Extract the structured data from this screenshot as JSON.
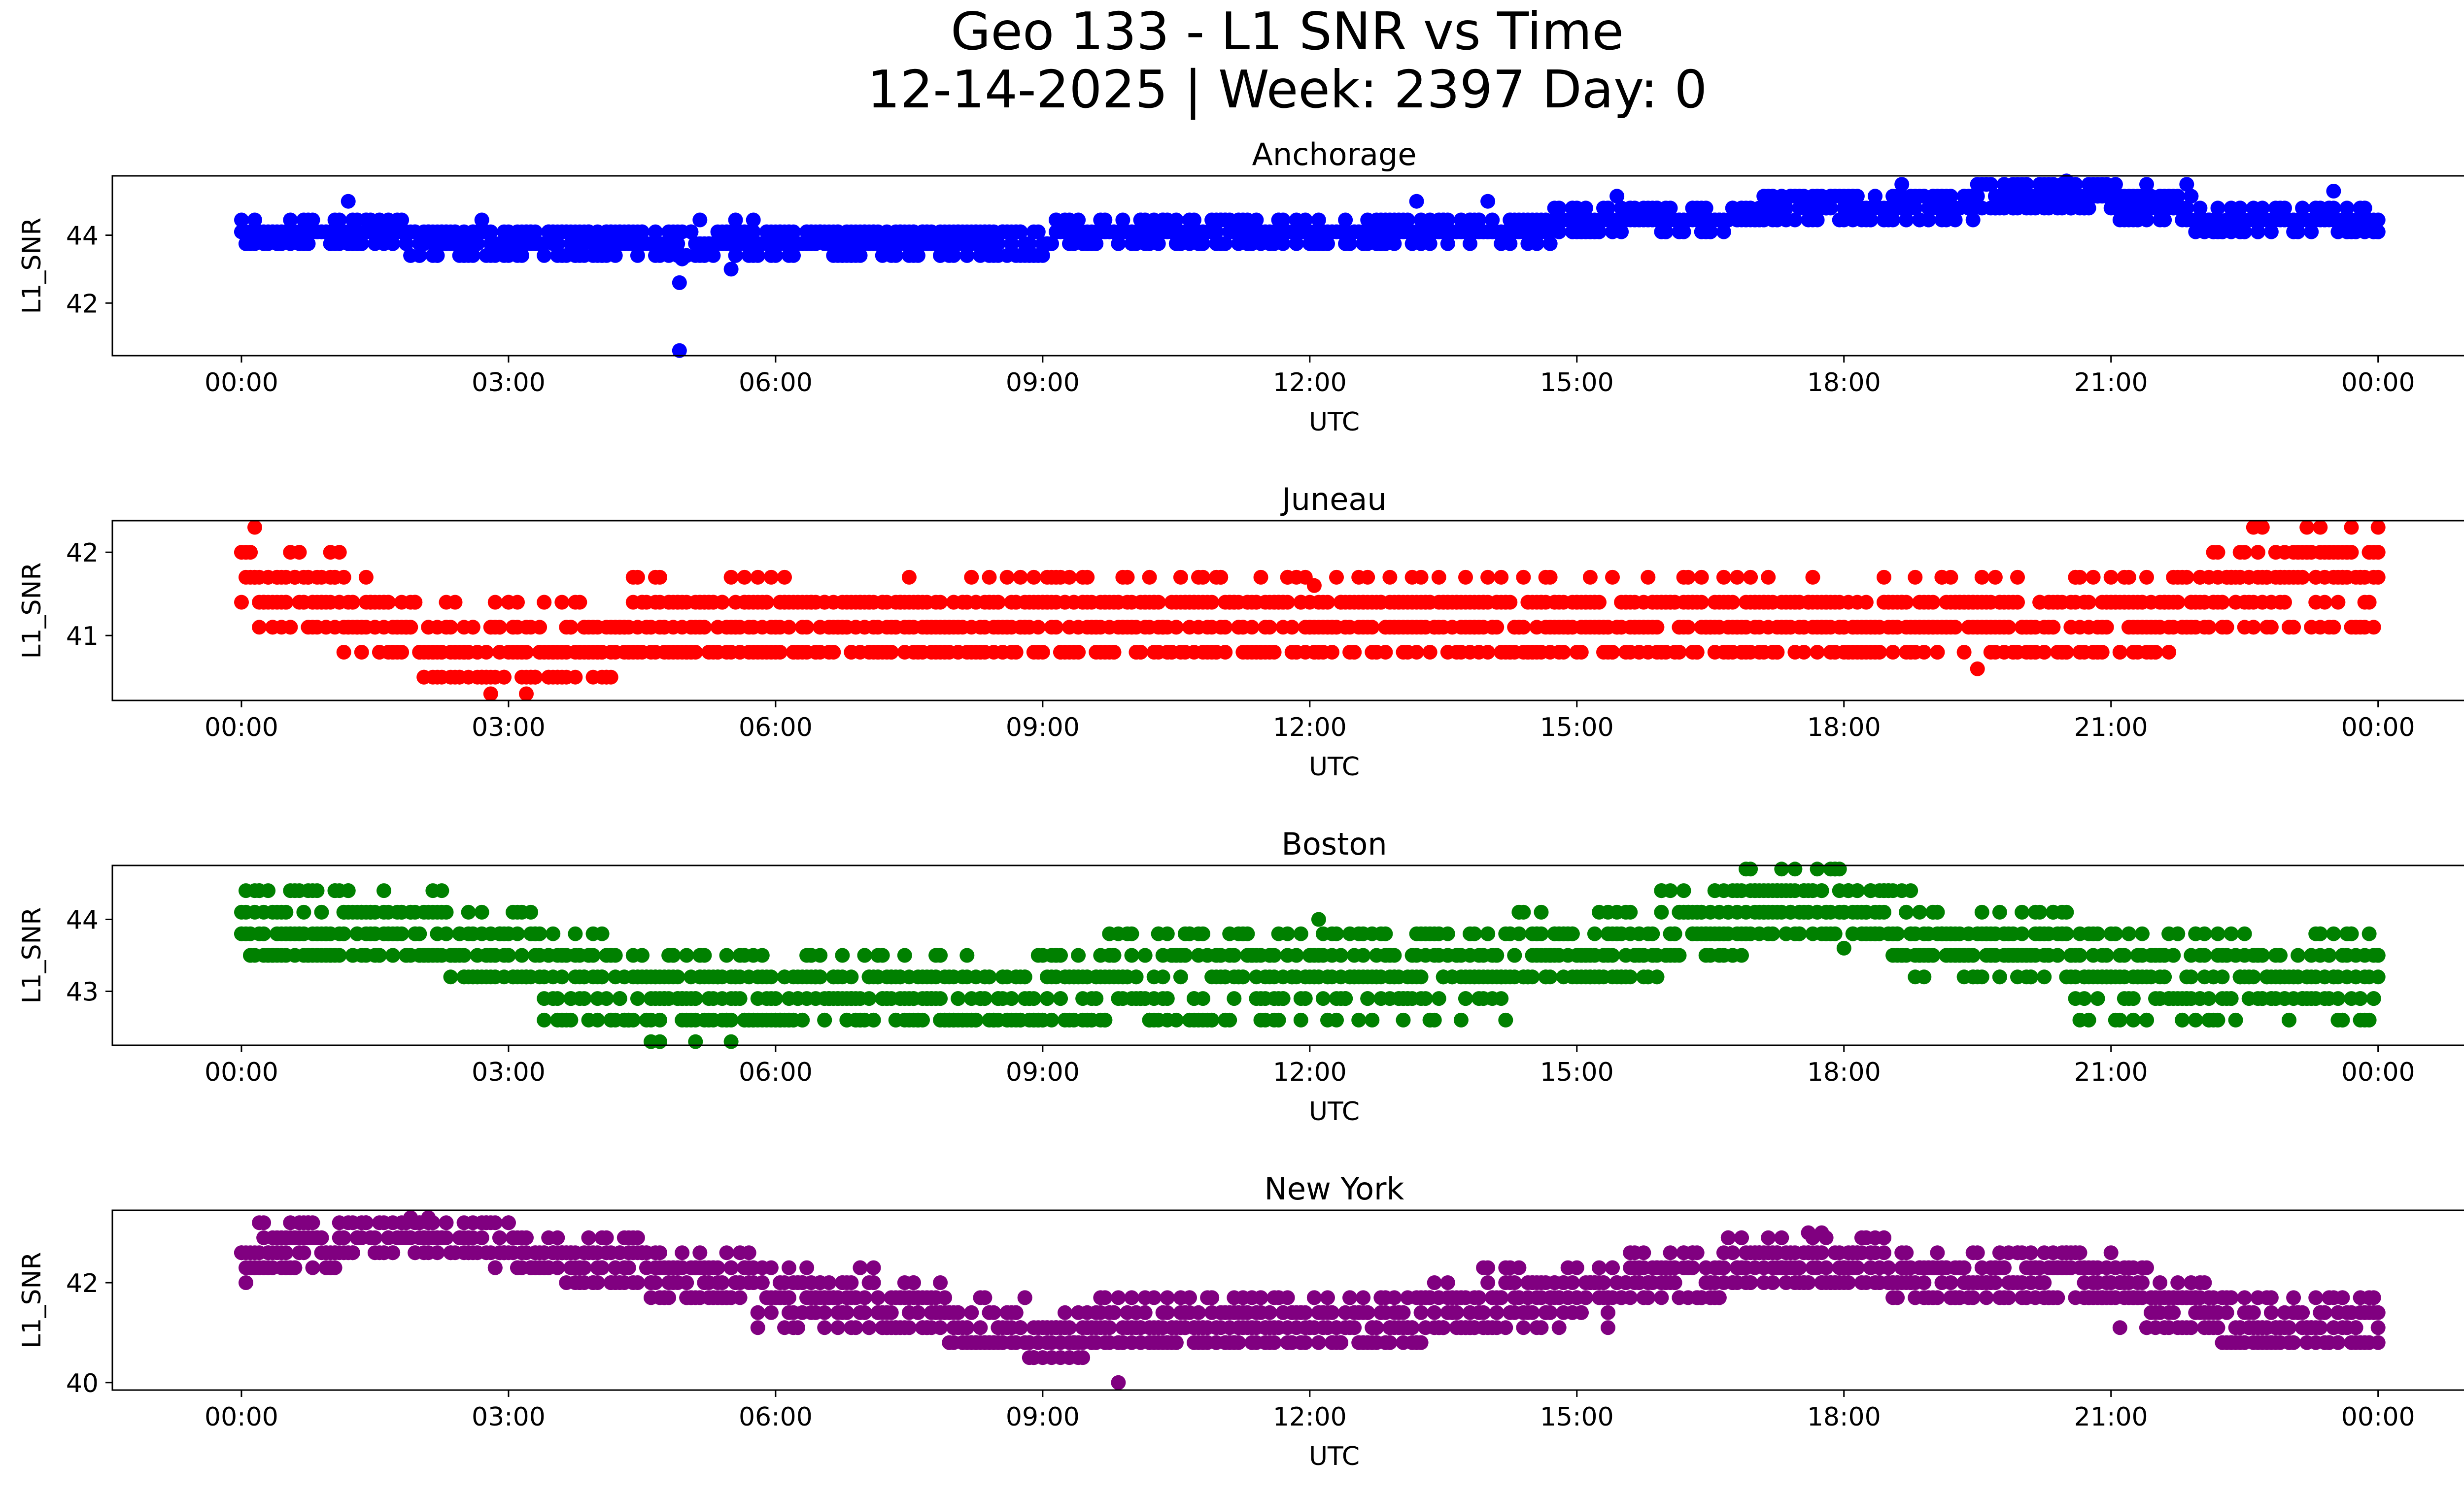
{
  "figure": {
    "title_line1": "Geo 133 - L1 SNR vs Time",
    "title_line2": "12-14-2025 | Week: 2397 Day: 0"
  },
  "chart_data": [
    {
      "type": "scatter",
      "title": "Anchorage",
      "xlabel": "UTC",
      "ylabel": "L1_SNR",
      "color": "#0000ff",
      "xlim": [
        -1.45,
        26.0
      ],
      "ylim": [
        40.45,
        45.75
      ],
      "x_ticks": [
        0,
        3,
        6,
        9,
        12,
        15,
        18,
        21,
        24
      ],
      "x_tick_labels": [
        "00:00",
        "03:00",
        "06:00",
        "09:00",
        "12:00",
        "15:00",
        "18:00",
        "21:00",
        "00:00"
      ],
      "y_ticks": [
        42,
        44
      ],
      "y_tick_labels": [
        "42",
        "44"
      ],
      "profile": [
        [
          0,
          44.1
        ],
        [
          1.5,
          44.0
        ],
        [
          2.5,
          43.8
        ],
        [
          4.0,
          43.8
        ],
        [
          6.0,
          43.9
        ],
        [
          8.0,
          43.9
        ],
        [
          9.0,
          43.9
        ],
        [
          10.0,
          44.1
        ],
        [
          12.0,
          44.2
        ],
        [
          14.0,
          44.2
        ],
        [
          16.0,
          44.4
        ],
        [
          17.0,
          44.6
        ],
        [
          18.0,
          44.9
        ],
        [
          20.0,
          45.0
        ],
        [
          21.0,
          45.0
        ],
        [
          22.0,
          44.6
        ],
        [
          24.0,
          44.6
        ]
      ],
      "spread": 0.9,
      "step": 0.35,
      "outliers": [
        [
          4.92,
          42.6
        ],
        [
          4.92,
          40.6
        ],
        [
          5.5,
          43.0
        ],
        [
          4.95,
          43.3
        ],
        [
          1.2,
          45.0
        ],
        [
          13.2,
          45.0
        ],
        [
          14.0,
          45.0
        ],
        [
          20.5,
          45.6
        ],
        [
          23.5,
          45.3
        ]
      ]
    },
    {
      "type": "scatter",
      "title": "Juneau",
      "xlabel": "UTC",
      "ylabel": "L1_SNR",
      "color": "#ff0000",
      "xlim": [
        -1.45,
        26.0
      ],
      "ylim": [
        40.22,
        42.38
      ],
      "x_ticks": [
        0,
        3,
        6,
        9,
        12,
        15,
        18,
        21,
        24
      ],
      "x_tick_labels": [
        "00:00",
        "03:00",
        "06:00",
        "09:00",
        "12:00",
        "15:00",
        "18:00",
        "21:00",
        "00:00"
      ],
      "y_ticks": [
        41,
        42
      ],
      "y_tick_labels": [
        "41",
        "42"
      ],
      "profile": [
        [
          0,
          41.6
        ],
        [
          1.0,
          41.3
        ],
        [
          1.8,
          41.0
        ],
        [
          2.5,
          40.8
        ],
        [
          3.5,
          40.8
        ],
        [
          4.5,
          41.0
        ],
        [
          6.0,
          41.1
        ],
        [
          9.0,
          41.1
        ],
        [
          12.0,
          41.1
        ],
        [
          15.0,
          41.1
        ],
        [
          18.0,
          41.1
        ],
        [
          21.0,
          41.1
        ],
        [
          22.0,
          41.3
        ],
        [
          23.0,
          41.6
        ],
        [
          24.0,
          41.6
        ]
      ],
      "spread": 0.9,
      "step": 0.3,
      "outliers": [
        [
          22.6,
          42.3
        ],
        [
          22.7,
          42.3
        ],
        [
          2.8,
          40.3
        ],
        [
          3.2,
          40.3
        ],
        [
          19.5,
          40.6
        ],
        [
          12.05,
          41.6
        ]
      ]
    },
    {
      "type": "scatter",
      "title": "Boston",
      "xlabel": "UTC",
      "ylabel": "L1_SNR",
      "color": "#008000",
      "xlim": [
        -1.45,
        26.0
      ],
      "ylim": [
        42.25,
        44.75
      ],
      "x_ticks": [
        0,
        3,
        6,
        9,
        12,
        15,
        18,
        21,
        24
      ],
      "x_tick_labels": [
        "00:00",
        "03:00",
        "06:00",
        "09:00",
        "12:00",
        "15:00",
        "18:00",
        "21:00",
        "00:00"
      ],
      "y_ticks": [
        43,
        44
      ],
      "y_tick_labels": [
        "43",
        "44"
      ],
      "profile": [
        [
          0,
          43.8
        ],
        [
          1.5,
          43.8
        ],
        [
          2.5,
          43.6
        ],
        [
          3.5,
          43.3
        ],
        [
          4.5,
          42.9
        ],
        [
          6.0,
          42.8
        ],
        [
          7.0,
          42.9
        ],
        [
          9.0,
          43.0
        ],
        [
          12.0,
          43.2
        ],
        [
          15.0,
          43.4
        ],
        [
          16.5,
          43.8
        ],
        [
          17.5,
          44.2
        ],
        [
          18.5,
          44.0
        ],
        [
          19.0,
          43.4
        ],
        [
          22.0,
          43.3
        ],
        [
          23.0,
          43.0
        ],
        [
          24.0,
          43.2
        ]
      ],
      "spread": 1.0,
      "step": 0.3,
      "outliers": [
        [
          4.6,
          42.3
        ],
        [
          4.7,
          42.3
        ],
        [
          5.1,
          42.3
        ],
        [
          5.5,
          42.3
        ],
        [
          12.1,
          44.0
        ],
        [
          18.0,
          43.6
        ],
        [
          11.6,
          42.6
        ]
      ]
    },
    {
      "type": "scatter",
      "title": "New York",
      "xlabel": "UTC",
      "ylabel": "L1_SNR",
      "color": "#800080",
      "xlim": [
        -1.45,
        26.0
      ],
      "ylim": [
        39.85,
        43.45
      ],
      "x_ticks": [
        0,
        3,
        6,
        9,
        12,
        15,
        18,
        21,
        24
      ],
      "x_tick_labels": [
        "00:00",
        "03:00",
        "06:00",
        "09:00",
        "12:00",
        "15:00",
        "18:00",
        "21:00",
        "00:00"
      ],
      "y_ticks": [
        40,
        42
      ],
      "y_tick_labels": [
        "40",
        "42"
      ],
      "profile": [
        [
          0,
          42.4
        ],
        [
          1.0,
          42.7
        ],
        [
          2.0,
          43.0
        ],
        [
          3.0,
          42.7
        ],
        [
          4.0,
          42.3
        ],
        [
          5.0,
          42.0
        ],
        [
          6.0,
          41.8
        ],
        [
          7.0,
          41.6
        ],
        [
          8.0,
          41.2
        ],
        [
          9.0,
          40.9
        ],
        [
          10.0,
          41.0
        ],
        [
          11.0,
          41.2
        ],
        [
          12.0,
          41.1
        ],
        [
          13.0,
          41.1
        ],
        [
          14.0,
          41.6
        ],
        [
          15.0,
          41.8
        ],
        [
          16.0,
          41.9
        ],
        [
          17.0,
          42.3
        ],
        [
          18.0,
          42.3
        ],
        [
          19.0,
          42.0
        ],
        [
          21.0,
          41.9
        ],
        [
          22.0,
          41.3
        ],
        [
          23.0,
          41.0
        ],
        [
          24.0,
          41.2
        ]
      ],
      "spread": 1.0,
      "step": 0.3,
      "outliers": [
        [
          9.85,
          40.0
        ],
        [
          17.6,
          43.0
        ],
        [
          17.75,
          43.0
        ],
        [
          1.9,
          43.3
        ],
        [
          2.1,
          43.3
        ]
      ]
    }
  ]
}
